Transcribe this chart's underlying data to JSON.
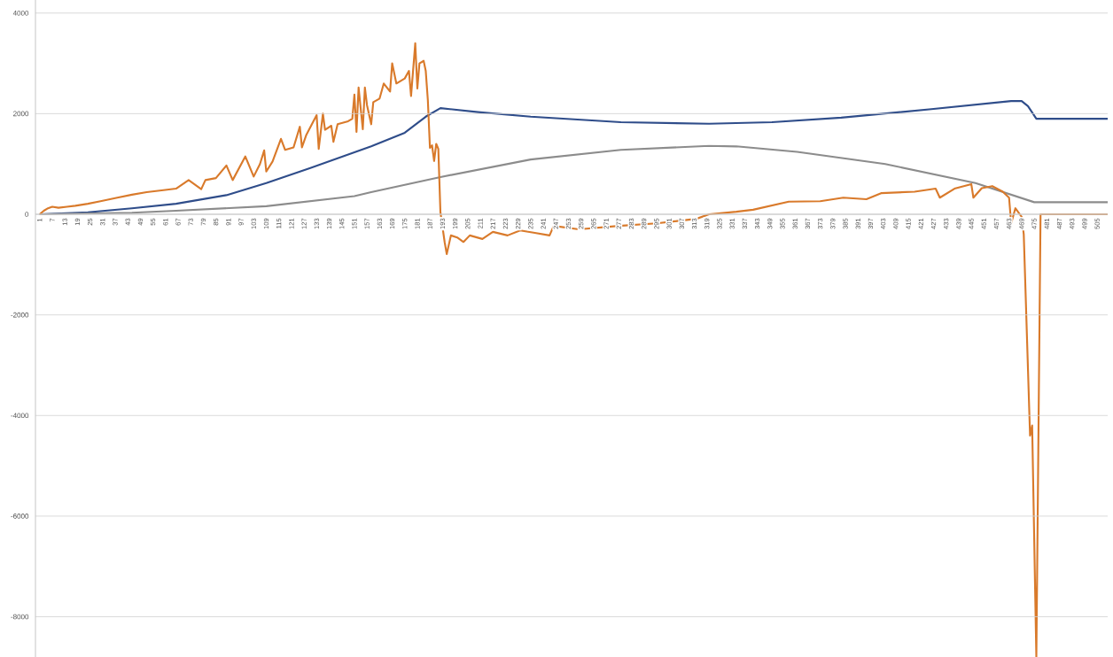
{
  "chart_data": {
    "type": "line",
    "xlim": [
      -1,
      510
    ],
    "ylim": [
      -8800,
      4260
    ],
    "yticks": [
      -8000,
      -6000,
      -4000,
      -2000,
      0,
      2000,
      4000
    ],
    "xticks": [
      1,
      7,
      13,
      19,
      25,
      31,
      37,
      43,
      49,
      55,
      61,
      67,
      73,
      79,
      85,
      91,
      97,
      103,
      109,
      115,
      121,
      127,
      133,
      139,
      145,
      151,
      157,
      163,
      169,
      175,
      181,
      187,
      193,
      199,
      205,
      211,
      217,
      223,
      229,
      235,
      241,
      247,
      253,
      259,
      265,
      271,
      277,
      283,
      289,
      295,
      301,
      307,
      313,
      319,
      325,
      331,
      337,
      343,
      349,
      355,
      361,
      367,
      373,
      379,
      385,
      391,
      397,
      403,
      409,
      415,
      421,
      427,
      433,
      439,
      445,
      451,
      457,
      463,
      469,
      475,
      481,
      487,
      493,
      499,
      505
    ],
    "grid": "y",
    "series": [
      {
        "color": "#2f4d8a",
        "x": [
          1,
          24,
          45,
          66,
          90,
          109,
          130,
          159,
          175,
          185,
          192,
          210,
          235,
          278,
          320,
          350,
          383,
          426,
          464,
          469,
          472,
          476,
          478,
          510
        ],
        "values": [
          0,
          40,
          120,
          210,
          380,
          620,
          920,
          1350,
          1620,
          1940,
          2110,
          2030,
          1940,
          1830,
          1800,
          1830,
          1920,
          2090,
          2250,
          2250,
          2150,
          1900,
          1900,
          1900
        ]
      },
      {
        "color": "#8c8c8c",
        "x": [
          1,
          45,
          66,
          109,
          151,
          159,
          192,
          235,
          278,
          320,
          333,
          362,
          404,
          447,
          475,
          510
        ],
        "values": [
          0,
          30,
          70,
          160,
          360,
          440,
          740,
          1090,
          1280,
          1360,
          1350,
          1240,
          1000,
          620,
          240,
          240
        ]
      },
      {
        "color": "#d97a2b",
        "x": [
          1,
          3,
          5,
          7,
          10,
          14,
          18,
          24,
          30,
          38,
          45,
          52,
          60,
          66,
          72,
          78,
          80,
          85,
          90,
          93,
          99,
          103,
          106,
          108,
          109,
          112,
          116,
          118,
          122,
          125,
          126,
          128,
          133,
          134,
          136,
          137,
          140,
          141,
          143,
          148,
          150,
          151,
          152,
          153,
          155,
          156,
          157,
          159,
          160,
          163,
          165,
          168,
          169,
          171,
          175,
          177,
          178,
          180,
          181,
          182,
          184,
          185,
          186,
          187,
          188,
          189,
          190,
          191,
          192,
          194,
          195,
          197,
          200,
          203,
          206,
          212,
          217,
          224,
          230,
          237,
          244,
          246,
          258,
          277,
          295,
          314,
          320,
          333,
          341,
          358,
          373,
          384,
          395,
          402,
          418,
          428,
          430,
          437,
          445,
          446,
          450,
          455,
          460,
          463,
          464,
          466,
          469,
          470,
          473,
          474,
          476,
          478,
          490,
          510
        ],
        "values": [
          0,
          70,
          120,
          150,
          130,
          150,
          170,
          210,
          260,
          330,
          390,
          440,
          480,
          510,
          680,
          500,
          680,
          720,
          970,
          680,
          1150,
          750,
          1000,
          1270,
          850,
          1050,
          1500,
          1280,
          1330,
          1740,
          1330,
          1570,
          1970,
          1300,
          2000,
          1680,
          1760,
          1440,
          1790,
          1850,
          1900,
          2380,
          1640,
          2520,
          1690,
          2520,
          2170,
          1790,
          2230,
          2300,
          2600,
          2440,
          3000,
          2600,
          2700,
          2850,
          2350,
          3400,
          2500,
          3000,
          3050,
          2850,
          2270,
          1320,
          1370,
          1060,
          1400,
          1300,
          40,
          -550,
          -790,
          -420,
          -460,
          -550,
          -420,
          -490,
          -350,
          -420,
          -320,
          -370,
          -420,
          -230,
          -300,
          -230,
          -180,
          -90,
          0,
          50,
          90,
          250,
          260,
          330,
          300,
          420,
          450,
          510,
          330,
          510,
          600,
          330,
          520,
          560,
          450,
          330,
          -180,
          120,
          -50,
          -400,
          -4400,
          -4200,
          -8800,
          0,
          0,
          0
        ]
      }
    ]
  }
}
